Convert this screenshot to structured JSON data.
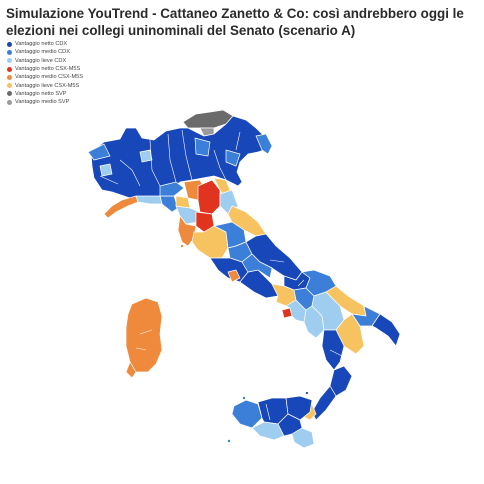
{
  "title": "Simulazione YouTrend - Cattaneo Zanetto & Co: così andrebbero oggi le elezioni nei collegi uninominali del Senato (scenario A)",
  "colors": {
    "netto_cdx": "#1747b8",
    "medio_cdx": "#3c7fd9",
    "lieve_cdx": "#9fcdef",
    "netto_csx": "#e0341e",
    "medio_csx": "#ef8a3c",
    "lieve_csx": "#f7c260",
    "netto_svp": "#6b6b6b",
    "medio_svp": "#9a9a9a"
  },
  "legend": [
    {
      "label": "Vantaggio netto CDX",
      "color": "#1747b8"
    },
    {
      "label": "Vantaggio medio CDX",
      "color": "#3c7fd9"
    },
    {
      "label": "Vantaggio lieve CDX",
      "color": "#9fcdef"
    },
    {
      "label": "Vantaggio netto CSX-M5S",
      "color": "#e0341e"
    },
    {
      "label": "Vantaggio medio CSX-M5S",
      "color": "#ef8a3c"
    },
    {
      "label": "Vantaggio lieve CSX-M5S",
      "color": "#f7c260"
    },
    {
      "label": "Vantaggio netto SVP",
      "color": "#6b6b6b"
    },
    {
      "label": "Vantaggio medio SVP",
      "color": "#9a9a9a"
    }
  ]
}
